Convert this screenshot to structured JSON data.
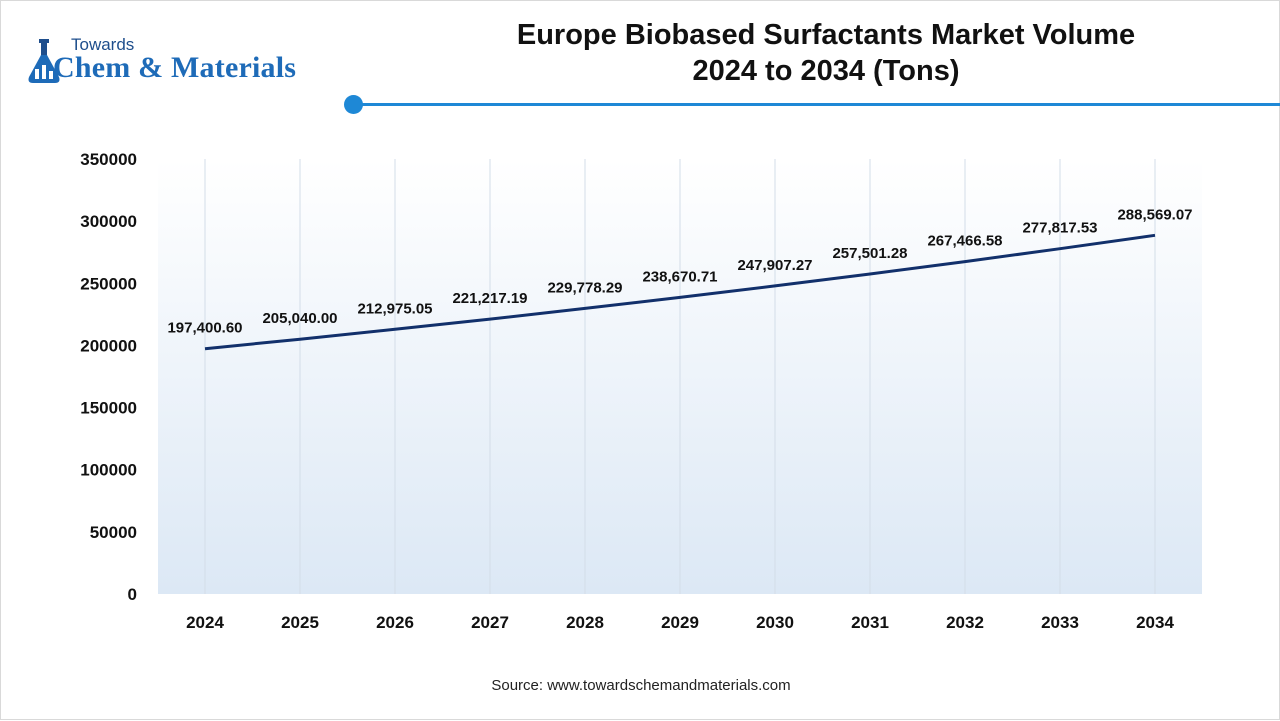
{
  "brand": {
    "line1": "Towards",
    "line2": "Chem & Materials"
  },
  "chart_data": {
    "type": "line",
    "title_line1": "Europe Biobased Surfactants Market Volume",
    "title_line2": "2024 to 2034 (Tons)",
    "xlabel": "",
    "ylabel": "",
    "categories": [
      "2024",
      "2025",
      "2026",
      "2027",
      "2028",
      "2029",
      "2030",
      "2031",
      "2032",
      "2033",
      "2034"
    ],
    "values": [
      197400.6,
      205040.0,
      212975.05,
      221217.19,
      229778.29,
      238670.71,
      247907.27,
      257501.28,
      267466.58,
      277817.53,
      288569.07
    ],
    "data_labels": [
      "197,400.60",
      "205,040.00",
      "212,975.05",
      "221,217.19",
      "229,778.29",
      "238,670.71",
      "247,907.27",
      "257,501.28",
      "267,466.58",
      "277,817.53",
      "288,569.07"
    ],
    "ylim": [
      0,
      350000
    ],
    "yticks": [
      "0",
      "50000",
      "100000",
      "150000",
      "200000",
      "250000",
      "300000",
      "350000"
    ],
    "grid": "vertical",
    "legend": "none",
    "line_color": "#12306b"
  },
  "source": "Source: www.towardschemandmaterials.com"
}
